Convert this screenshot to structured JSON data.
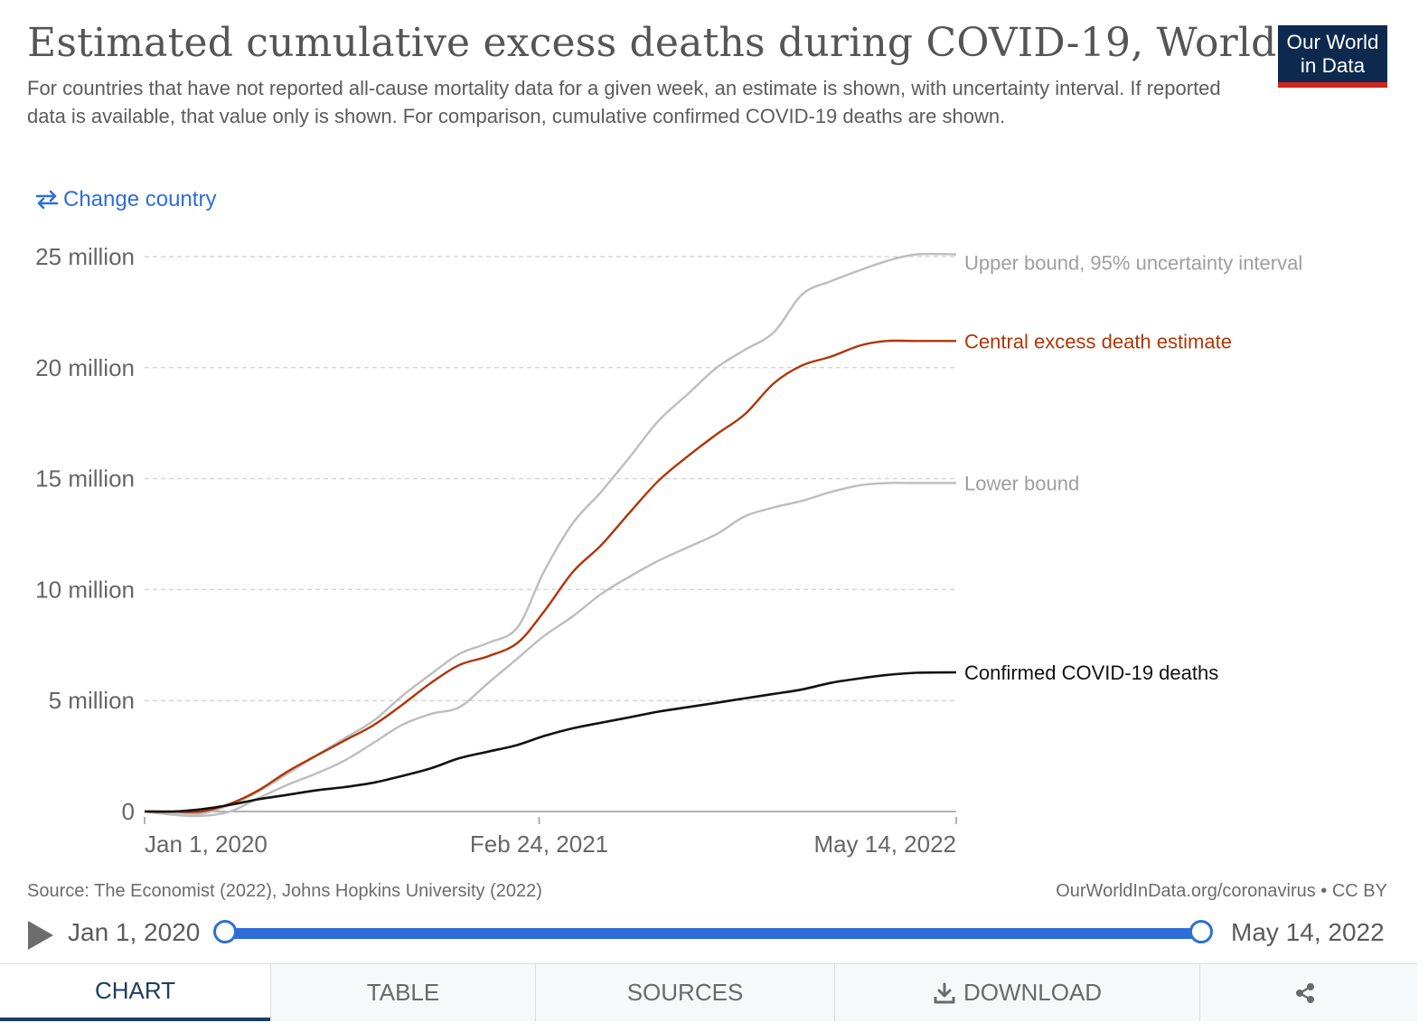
{
  "header": {
    "title": "Estimated cumulative excess deaths during COVID-19, World",
    "subtitle": "For countries that have not reported all-cause mortality data for a given week, an estimate is shown, with uncertainty interval. If reported data is available, that value only is shown. For comparison, cumulative confirmed COVID-19 deaths are shown.",
    "logo_line1": "Our World",
    "logo_line2": "in Data",
    "change_country_label": "Change country",
    "change_country_icon": "swap-arrows-icon"
  },
  "chart_data": {
    "type": "line",
    "x_label": "",
    "y_label": "",
    "ylim": [
      0,
      25000000
    ],
    "grid": "horizontal dashed",
    "legend": "inline labels at right end of lines",
    "x_ticks": [
      "Jan 1, 2020",
      "Feb 24, 2021",
      "May 14, 2022"
    ],
    "y_ticks": [
      "0",
      "5 million",
      "10 million",
      "15 million",
      "20 million",
      "25 million"
    ],
    "y_tick_values": [
      0,
      5000000,
      10000000,
      15000000,
      20000000,
      25000000
    ],
    "x": [
      "2020-01-01",
      "2020-02-01",
      "2020-03-01",
      "2020-04-01",
      "2020-05-01",
      "2020-06-01",
      "2020-07-01",
      "2020-08-01",
      "2020-09-01",
      "2020-10-01",
      "2020-11-01",
      "2020-12-01",
      "2021-01-01",
      "2021-02-01",
      "2021-03-01",
      "2021-04-01",
      "2021-05-01",
      "2021-06-01",
      "2021-07-01",
      "2021-08-01",
      "2021-09-01",
      "2021-10-01",
      "2021-11-01",
      "2021-12-01",
      "2022-01-01",
      "2022-02-01",
      "2022-03-01",
      "2022-04-01",
      "2022-05-14"
    ],
    "series": [
      {
        "name": "Upper bound, 95% uncertainty interval",
        "color": "#bdbdbd",
        "values": [
          0,
          -50000,
          -100000,
          300000,
          900000,
          1700000,
          2500000,
          3300000,
          4100000,
          5200000,
          6200000,
          7100000,
          7600000,
          8300000,
          10800000,
          13000000,
          14400000,
          16000000,
          17600000,
          18800000,
          20000000,
          20800000,
          21600000,
          23300000,
          23900000,
          24400000,
          24800000,
          25100000,
          25100000
        ]
      },
      {
        "name": "Central excess death estimate",
        "color": "#b13507",
        "values": [
          0,
          0,
          0,
          350000,
          950000,
          1800000,
          2500000,
          3200000,
          3900000,
          4800000,
          5800000,
          6600000,
          7000000,
          7600000,
          9000000,
          10800000,
          12000000,
          13500000,
          14900000,
          16000000,
          17000000,
          17900000,
          19300000,
          20100000,
          20500000,
          21000000,
          21200000,
          21200000,
          21200000
        ]
      },
      {
        "name": "Lower bound",
        "color": "#bdbdbd",
        "values": [
          0,
          -150000,
          -200000,
          0,
          600000,
          1200000,
          1700000,
          2300000,
          3100000,
          3900000,
          4400000,
          4700000,
          5800000,
          6900000,
          7900000,
          8800000,
          9800000,
          10600000,
          11300000,
          11900000,
          12500000,
          13300000,
          13700000,
          14000000,
          14400000,
          14700000,
          14800000,
          14800000,
          14800000
        ]
      },
      {
        "name": "Confirmed COVID-19 deaths",
        "color": "#111111",
        "values": [
          0,
          0,
          100000,
          300000,
          550000,
          750000,
          950000,
          1100000,
          1300000,
          1600000,
          1950000,
          2400000,
          2700000,
          3000000,
          3400000,
          3750000,
          4000000,
          4250000,
          4500000,
          4700000,
          4900000,
          5100000,
          5300000,
          5500000,
          5800000,
          6000000,
          6150000,
          6250000,
          6270000
        ]
      }
    ]
  },
  "footer": {
    "source": "Source: The Economist (2022), Johns Hopkins University (2022)",
    "attribution": "OurWorldInData.org/coronavirus • CC BY"
  },
  "timeline": {
    "play_icon": "play-icon",
    "start_label": "Jan 1, 2020",
    "end_label": "May 14, 2022",
    "selected_start_fraction": 0,
    "selected_end_fraction": 1
  },
  "tabs": {
    "chart": "CHART",
    "table": "TABLE",
    "sources": "SOURCES",
    "download": "DOWNLOAD",
    "download_icon": "download-icon",
    "share_icon": "share-icon"
  }
}
